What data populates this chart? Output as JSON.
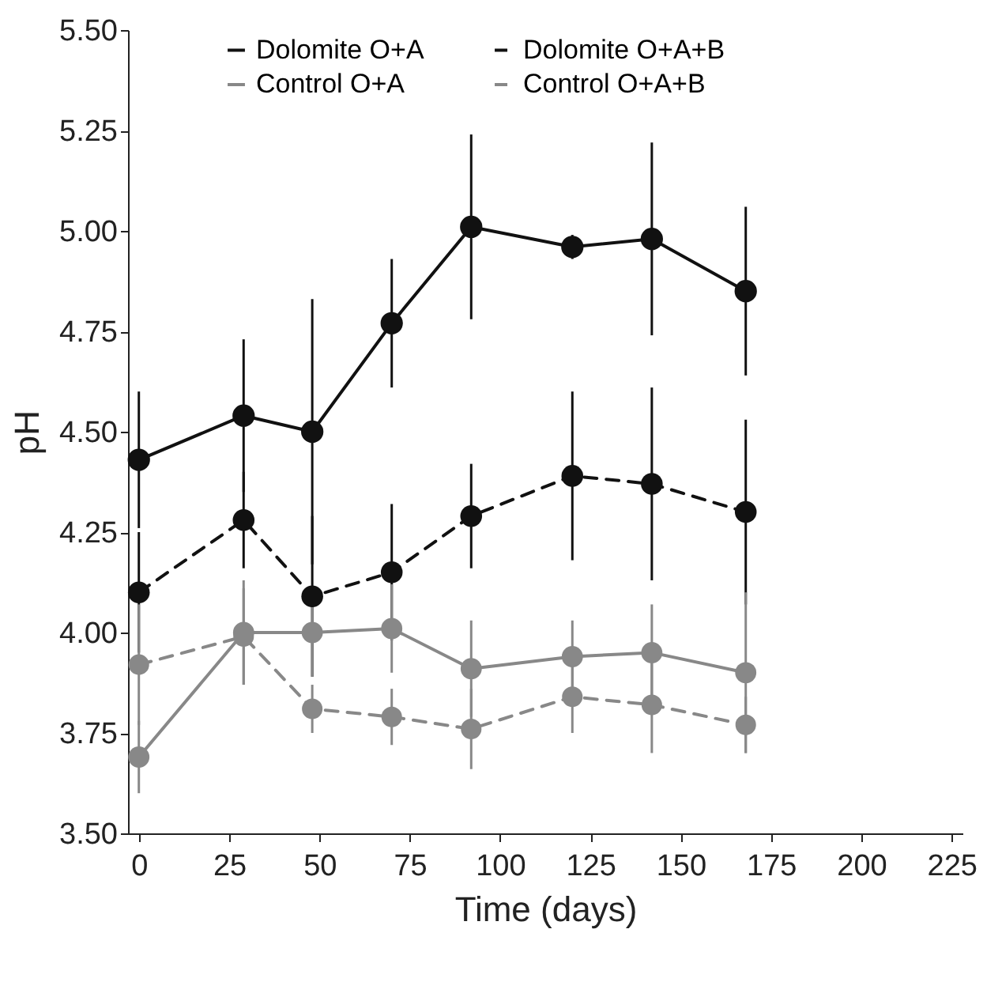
{
  "chart_data": {
    "type": "line",
    "xlabel": "Time  (days)",
    "ylabel": "pH",
    "x": [
      0,
      29,
      48,
      70,
      92,
      120,
      142,
      168
    ],
    "series": [
      {
        "name": "Dolomite O+A",
        "color": "#111111",
        "line_style": "solid",
        "marker": "circle",
        "values": [
          4.43,
          4.54,
          4.5,
          4.77,
          5.01,
          4.96,
          4.98,
          4.85
        ],
        "errors": [
          0.17,
          0.19,
          0.33,
          0.16,
          0.23,
          0.03,
          0.24,
          0.21
        ]
      },
      {
        "name": "Dolomite O+A+B",
        "color": "#111111",
        "line_style": "dashed",
        "marker": "circle",
        "values": [
          4.1,
          4.28,
          4.09,
          4.15,
          4.29,
          4.39,
          4.37,
          4.3
        ],
        "errors": [
          0.15,
          0.12,
          0.2,
          0.17,
          0.13,
          0.21,
          0.24,
          0.23
        ]
      },
      {
        "name": "Control O+A",
        "color": "#888888",
        "line_style": "solid",
        "marker": "circle",
        "values": [
          3.69,
          4.0,
          4.0,
          4.01,
          3.91,
          3.94,
          3.95,
          3.9
        ],
        "errors": [
          0.09,
          0.13,
          0.11,
          0.11,
          0.12,
          0.09,
          0.12,
          0.2
        ]
      },
      {
        "name": "Control O+A+B",
        "color": "#888888",
        "line_style": "dashed",
        "marker": "circle",
        "values": [
          3.92,
          3.99,
          3.81,
          3.79,
          3.76,
          3.84,
          3.82,
          3.77
        ],
        "errors": [
          0.15,
          0.12,
          0.06,
          0.07,
          0.1,
          0.09,
          0.12,
          0.07
        ]
      }
    ],
    "xlim": [
      -3,
      228
    ],
    "xticks": [
      0,
      25,
      50,
      75,
      100,
      125,
      150,
      175,
      200,
      225
    ],
    "ylim": [
      3.5,
      5.5
    ],
    "yticks": [
      {
        "value": 3.5,
        "label": "3.50"
      },
      {
        "value": 3.75,
        "label": "3.75"
      },
      {
        "value": 4,
        "label": "4.00"
      },
      {
        "value": 4.25,
        "label": "4.25"
      },
      {
        "value": 4.5,
        "label": "4.50"
      },
      {
        "value": 4.75,
        "label": "4.75"
      },
      {
        "value": 5,
        "label": "5.00"
      },
      {
        "value": 5.25,
        "label": "5.25"
      },
      {
        "value": 5.5,
        "label": "5.50"
      }
    ],
    "grid": false,
    "legend": "top"
  }
}
